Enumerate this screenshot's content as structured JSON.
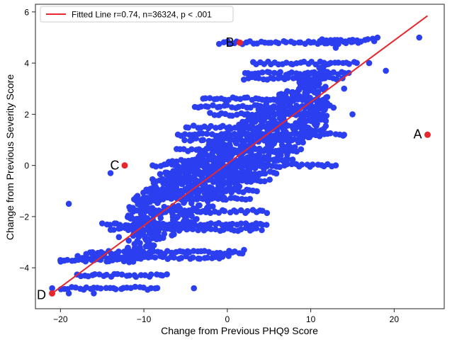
{
  "chart_data": {
    "type": "scatter",
    "xlabel": "Change from Previous PHQ9 Score",
    "ylabel": "Change from Previous Severity Score",
    "xlim": [
      -23,
      26
    ],
    "ylim": [
      -5.6,
      6.3
    ],
    "x_ticks": [
      -20,
      -10,
      0,
      10,
      20
    ],
    "y_ticks": [
      -4,
      -2,
      0,
      2,
      4,
      6
    ],
    "grid": false,
    "legend": {
      "placement": "top-left",
      "entries": [
        "Fitted Line r=0.74, n=36324, p < .001"
      ]
    },
    "colors": {
      "points": "#2b3ff0",
      "fit_line": "#e8262d",
      "highlight": "#e8262d"
    },
    "fit_line": {
      "label": "Fitted Line r=0.74, n=36324, p < .001",
      "x": [
        -21,
        24
      ],
      "y": [
        -5.0,
        5.85
      ]
    },
    "highlighted_points": [
      {
        "label": "A",
        "x": 24,
        "y": 1.2
      },
      {
        "label": "B",
        "x": 1.5,
        "y": 4.8
      },
      {
        "label": "C",
        "x": -12.3,
        "y": 0
      },
      {
        "label": "D",
        "x": -21,
        "y": -5.0
      }
    ],
    "point_bands": [
      {
        "y": 4.8,
        "x": [
          -1,
          16
        ]
      },
      {
        "y": 4.9,
        "x": [
          11,
          18
        ]
      },
      {
        "y": 4.0,
        "x": [
          3,
          16
        ]
      },
      {
        "y": 3.6,
        "x": [
          2,
          15
        ]
      },
      {
        "y": 3.4,
        "x": [
          2,
          14
        ]
      },
      {
        "y": 2.6,
        "x": [
          -3,
          12
        ]
      },
      {
        "y": 2.3,
        "x": [
          -4,
          13
        ]
      },
      {
        "y": 2.0,
        "x": [
          -2,
          12
        ]
      },
      {
        "y": 1.5,
        "x": [
          -5,
          10
        ]
      },
      {
        "y": 1.2,
        "x": [
          -6,
          14
        ]
      },
      {
        "y": 1.0,
        "x": [
          -5,
          9
        ]
      },
      {
        "y": 0.6,
        "x": [
          -6,
          9
        ]
      },
      {
        "y": 0.2,
        "x": [
          -7,
          8
        ]
      },
      {
        "y": 0.0,
        "x": [
          -9,
          13
        ]
      },
      {
        "y": -0.3,
        "x": [
          -8,
          6
        ]
      },
      {
        "y": -0.6,
        "x": [
          -9,
          5
        ]
      },
      {
        "y": -1.0,
        "x": [
          -9,
          4
        ]
      },
      {
        "y": -1.3,
        "x": [
          -10,
          3
        ]
      },
      {
        "y": -1.8,
        "x": [
          -11,
          5
        ]
      },
      {
        "y": -2.3,
        "x": [
          -15,
          5
        ]
      },
      {
        "y": -2.5,
        "x": [
          -14,
          4
        ]
      },
      {
        "y": -3.4,
        "x": [
          -17,
          2
        ]
      },
      {
        "y": -3.6,
        "x": [
          -18,
          0
        ]
      },
      {
        "y": -3.7,
        "x": [
          -20,
          -12
        ]
      },
      {
        "y": -4.3,
        "x": [
          -18,
          -7
        ]
      },
      {
        "y": -4.8,
        "x": [
          -20,
          -8
        ]
      }
    ],
    "scattered_points": [
      {
        "x": -19,
        "y": -1.5
      },
      {
        "x": -14,
        "y": -0.3
      },
      {
        "x": -20,
        "y": -3.7
      },
      {
        "x": -21,
        "y": -4.8
      },
      {
        "x": -19,
        "y": -5.0
      },
      {
        "x": -16,
        "y": -5.0
      },
      {
        "x": -4,
        "y": -4.8
      },
      {
        "x": -13,
        "y": -2.8
      },
      {
        "x": 2,
        "y": -3.3
      },
      {
        "x": 13,
        "y": 0
      },
      {
        "x": 14,
        "y": 1.2
      },
      {
        "x": 17,
        "y": 4.0
      },
      {
        "x": 18,
        "y": 5.0
      },
      {
        "x": 23,
        "y": 5.0
      },
      {
        "x": 19,
        "y": 3.7
      },
      {
        "x": 15,
        "y": 2.0
      },
      {
        "x": 10,
        "y": 4.8
      },
      {
        "x": 13,
        "y": 4.6
      },
      {
        "x": 14,
        "y": 3.0
      },
      {
        "x": 9,
        "y": 3.3
      }
    ]
  }
}
